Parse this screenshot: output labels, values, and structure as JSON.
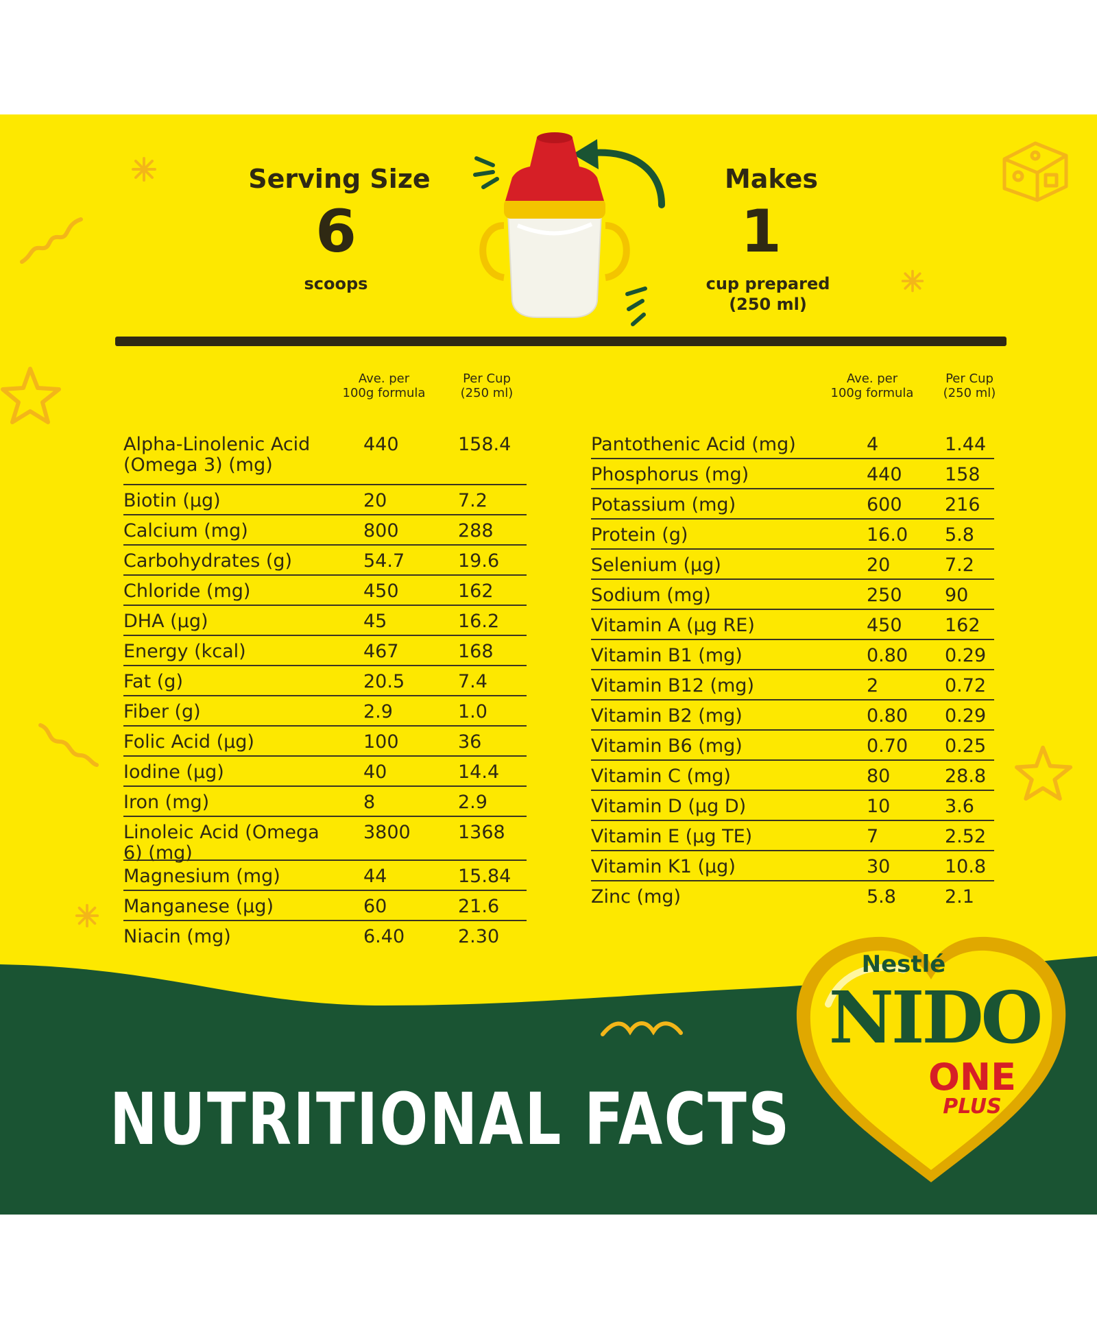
{
  "header": {
    "serving_label": "Serving Size",
    "serving_value": "6",
    "serving_unit": "scoops",
    "makes_label": "Makes",
    "makes_value": "1",
    "makes_unit_line1": "cup prepared",
    "makes_unit_line2": "(250 ml)"
  },
  "columns": {
    "per100_line1": "Ave. per",
    "per100_line2": "100g formula",
    "percup_line1": "Per Cup",
    "percup_line2": "(250 ml)"
  },
  "left_rows": [
    {
      "name": "Alpha-Linolenic Acid (Omega 3) (mg)",
      "per100": "440",
      "percup": "158.4"
    },
    {
      "name": "Biotin (µg)",
      "per100": "20",
      "percup": "7.2"
    },
    {
      "name": "Calcium (mg)",
      "per100": "800",
      "percup": "288"
    },
    {
      "name": "Carbohydrates (g)",
      "per100": "54.7",
      "percup": "19.6"
    },
    {
      "name": "Chloride (mg)",
      "per100": "450",
      "percup": "162"
    },
    {
      "name": "DHA (µg)",
      "per100": "45",
      "percup": "16.2"
    },
    {
      "name": "Energy (kcal)",
      "per100": "467",
      "percup": "168"
    },
    {
      "name": "Fat (g)",
      "per100": "20.5",
      "percup": "7.4"
    },
    {
      "name": "Fiber (g)",
      "per100": "2.9",
      "percup": "1.0"
    },
    {
      "name": "Folic Acid (µg)",
      "per100": "100",
      "percup": "36"
    },
    {
      "name": "Iodine (µg)",
      "per100": "40",
      "percup": "14.4"
    },
    {
      "name": "Iron (mg)",
      "per100": "8",
      "percup": "2.9"
    },
    {
      "name": "Linoleic Acid (Omega 6) (mg)",
      "per100": "3800",
      "percup": "1368"
    },
    {
      "name": "Magnesium (mg)",
      "per100": "44",
      "percup": "15.84"
    },
    {
      "name": "Manganese (µg)",
      "per100": "60",
      "percup": "21.6"
    },
    {
      "name": "Niacin (mg)",
      "per100": "6.40",
      "percup": "2.30"
    }
  ],
  "right_rows": [
    {
      "name": "Pantothenic Acid (mg)",
      "per100": "4",
      "percup": "1.44"
    },
    {
      "name": "Phosphorus (mg)",
      "per100": "440",
      "percup": "158"
    },
    {
      "name": "Potassium (mg)",
      "per100": "600",
      "percup": "216"
    },
    {
      "name": "Protein (g)",
      "per100": "16.0",
      "percup": "5.8"
    },
    {
      "name": "Selenium (µg)",
      "per100": "20",
      "percup": "7.2"
    },
    {
      "name": "Sodium (mg)",
      "per100": "250",
      "percup": "90"
    },
    {
      "name": "Vitamin A (µg RE)",
      "per100": "450",
      "percup": "162"
    },
    {
      "name": "Vitamin B1 (mg)",
      "per100": "0.80",
      "percup": "0.29"
    },
    {
      "name": "Vitamin B12 (mg)",
      "per100": "2",
      "percup": "0.72"
    },
    {
      "name": "Vitamin B2 (mg)",
      "per100": "0.80",
      "percup": "0.29"
    },
    {
      "name": "Vitamin B6 (mg)",
      "per100": "0.70",
      "percup": "0.25"
    },
    {
      "name": "Vitamin C (mg)",
      "per100": "80",
      "percup": "28.8"
    },
    {
      "name": "Vitamin D (µg D)",
      "per100": "10",
      "percup": "3.6"
    },
    {
      "name": "Vitamin E (µg TE)",
      "per100": "7",
      "percup": "2.52"
    },
    {
      "name": "Vitamin K1 (µg)",
      "per100": "30",
      "percup": "10.8"
    },
    {
      "name": "Zinc (mg)",
      "per100": "5.8",
      "percup": "2.1"
    }
  ],
  "footer": {
    "title": "NUTRITIONAL FACTS",
    "brand": "Nestlé",
    "product": "NIDO",
    "variant": "ONE",
    "variant_sub": "PLUS"
  },
  "colors": {
    "panel_yellow": "#fde800",
    "band_green": "#1a5433",
    "cap_red": "#d61f26",
    "text_dark": "#2f2913"
  }
}
